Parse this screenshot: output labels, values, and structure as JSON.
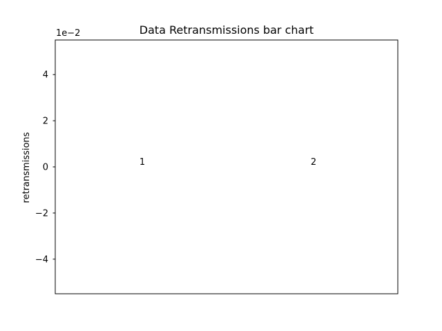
{
  "chart_data": {
    "type": "bar",
    "title": "Data Retransmissions bar chart",
    "xlabel": "",
    "ylabel": "retransmissions",
    "categories": [],
    "values": [],
    "ylim": [
      -0.055,
      0.055
    ],
    "yticks": [
      -0.04,
      -0.02,
      0,
      0.02,
      0.04
    ],
    "ytick_labels": [
      "−4",
      "−2",
      "0",
      "2",
      "4"
    ],
    "y_offset_label": "1e−2",
    "grid": false,
    "data_labels": [
      {
        "text": "1",
        "x": 0.5,
        "y": 0
      },
      {
        "text": "2",
        "x": 1.5,
        "y": 0
      }
    ],
    "xlim": [
      0,
      2
    ]
  }
}
